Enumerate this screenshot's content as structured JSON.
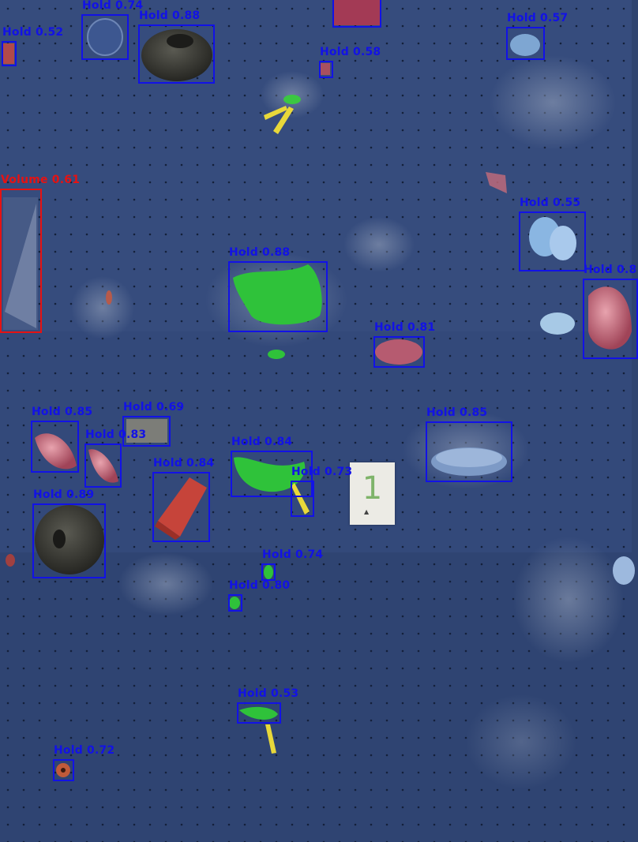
{
  "image": {
    "description_colors": {
      "wall": "#32497a",
      "hold_box": "#1212e6",
      "volume_box": "#e61212",
      "green_hold": "#2fc23a",
      "tape_marker": "#e8d83a"
    }
  },
  "detections": [
    {
      "label": "Hold 0.74",
      "class": "Hold",
      "confidence": 0.74
    },
    {
      "label": "Hold 0.88",
      "class": "Hold",
      "confidence": 0.88
    },
    {
      "label": "Hold 0.52",
      "class": "Hold",
      "confidence": 0.52
    },
    {
      "label": "Hold 0.58",
      "class": "Hold",
      "confidence": 0.58
    },
    {
      "label": "Hold 0.57",
      "class": "Hold",
      "confidence": 0.57
    },
    {
      "label": "Volume 0.61",
      "class": "Volume",
      "confidence": 0.61
    },
    {
      "label": "Hold 0.88",
      "class": "Hold",
      "confidence": 0.88
    },
    {
      "label": "Hold 0.55",
      "class": "Hold",
      "confidence": 0.55
    },
    {
      "label": "Hold 0.8",
      "class": "Hold",
      "confidence": null
    },
    {
      "label": "Hold 0.81",
      "class": "Hold",
      "confidence": 0.81
    },
    {
      "label": "Hold 0.85",
      "class": "Hold",
      "confidence": 0.85
    },
    {
      "label": "Hold 0.69",
      "class": "Hold",
      "confidence": 0.69
    },
    {
      "label": "Hold 0.83",
      "class": "Hold",
      "confidence": 0.83
    },
    {
      "label": "Hold 0.84",
      "class": "Hold",
      "confidence": 0.84
    },
    {
      "label": "Hold 0.85",
      "class": "Hold",
      "confidence": 0.85
    },
    {
      "label": "Hold 0.84",
      "class": "Hold",
      "confidence": 0.84
    },
    {
      "label": "Hold 0.73",
      "class": "Hold",
      "confidence": 0.73
    },
    {
      "label": "Hold 0.89",
      "class": "Hold",
      "confidence": 0.89
    },
    {
      "label": "Hold 0.74",
      "class": "Hold",
      "confidence": 0.74
    },
    {
      "label": "Hold 0.80",
      "class": "Hold",
      "confidence": 0.8
    },
    {
      "label": "Hold 0.53",
      "class": "Hold",
      "confidence": 0.53
    },
    {
      "label": "Hold 0.72",
      "class": "Hold",
      "confidence": 0.72
    },
    {
      "label": "",
      "class": "Hold",
      "confidence": null
    }
  ],
  "route_tag": {
    "number": "1"
  }
}
